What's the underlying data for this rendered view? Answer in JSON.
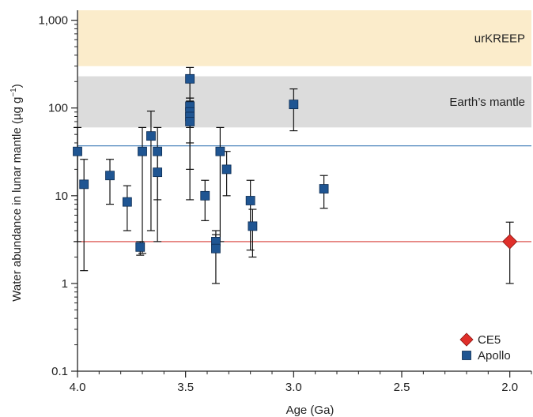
{
  "chart_data": {
    "type": "scatter",
    "title": "",
    "xlabel": "Age (Ga)",
    "ylabel_main": "Water abundance in lunar mantle (µg g",
    "ylabel_sup": "−1",
    "ylabel_close": ")",
    "x_reversed": true,
    "y_scale": "log",
    "xlim": [
      4.0,
      1.9
    ],
    "ylim": [
      0.1,
      1300
    ],
    "x_ticks": [
      4.0,
      3.5,
      3.0,
      2.5,
      2.0
    ],
    "x_tick_labels": [
      "4.0",
      "3.5",
      "3.0",
      "2.5",
      "2.0"
    ],
    "y_ticks": [
      0.1,
      1,
      10,
      100,
      1000
    ],
    "y_tick_labels": [
      "0.1",
      "1",
      "10",
      "100",
      "1,000"
    ],
    "bands": [
      {
        "name": "urKREEP",
        "y_min": 300,
        "y_max": 1300,
        "color": "#fbeccb"
      },
      {
        "name": "Earth’s mantle",
        "y_min": 60,
        "y_max": 230,
        "color": "#dcdcdc"
      }
    ],
    "reference_lines": [
      {
        "y": 37,
        "color": "#3a78b6"
      },
      {
        "y": 3,
        "color": "#d63a35"
      }
    ],
    "series": [
      {
        "name": "Apollo",
        "marker": "square",
        "color": "#1f5592",
        "points": [
          {
            "x": 4.0,
            "y": 32,
            "lo": 3,
            "hi": 60
          },
          {
            "x": 3.97,
            "y": 13.5,
            "lo": 1.4,
            "hi": 26
          },
          {
            "x": 3.85,
            "y": 17,
            "lo": 8,
            "hi": 26
          },
          {
            "x": 3.77,
            "y": 8.5,
            "lo": 4,
            "hi": 13
          },
          {
            "x": 3.71,
            "y": 2.6,
            "lo": 2.1,
            "hi": 3.0
          },
          {
            "x": 3.7,
            "y": 32,
            "lo": 2.2,
            "hi": 60
          },
          {
            "x": 3.66,
            "y": 48,
            "lo": 4,
            "hi": 92
          },
          {
            "x": 3.63,
            "y": 32,
            "lo": 9,
            "hi": 60
          },
          {
            "x": 3.63,
            "y": 18.5,
            "lo": 3,
            "hi": 34
          },
          {
            "x": 3.48,
            "y": 215,
            "lo": 130,
            "hi": 290
          },
          {
            "x": 3.48,
            "y": 105,
            "lo": 60,
            "hi": 130
          },
          {
            "x": 3.48,
            "y": 90,
            "lo": 40,
            "hi": 130
          },
          {
            "x": 3.48,
            "y": 80,
            "lo": 20,
            "hi": 120
          },
          {
            "x": 3.48,
            "y": 70,
            "lo": 9,
            "hi": 110
          },
          {
            "x": 3.41,
            "y": 10,
            "lo": 5.2,
            "hi": 15
          },
          {
            "x": 3.36,
            "y": 3.0,
            "lo": 2.5,
            "hi": 4
          },
          {
            "x": 3.36,
            "y": 2.5,
            "lo": 1.0,
            "hi": 3.6
          },
          {
            "x": 3.34,
            "y": 32,
            "lo": 3,
            "hi": 60
          },
          {
            "x": 3.31,
            "y": 20,
            "lo": 10,
            "hi": 32
          },
          {
            "x": 3.2,
            "y": 8.8,
            "lo": 2.4,
            "hi": 15
          },
          {
            "x": 3.19,
            "y": 4.5,
            "lo": 2.0,
            "hi": 7
          },
          {
            "x": 3.0,
            "y": 110,
            "lo": 55,
            "hi": 165
          },
          {
            "x": 2.86,
            "y": 12,
            "lo": 7.2,
            "hi": 17
          }
        ]
      },
      {
        "name": "CE5",
        "marker": "diamond",
        "color": "#e02f2a",
        "points": [
          {
            "x": 2.0,
            "y": 3.0,
            "lo": 1.0,
            "hi": 5.0
          }
        ]
      }
    ],
    "legend": {
      "position": "bottom-right",
      "entries": [
        {
          "name": "CE5",
          "marker": "diamond",
          "color": "#e02f2a"
        },
        {
          "name": "Apollo",
          "marker": "square",
          "color": "#1f5592"
        }
      ]
    }
  }
}
